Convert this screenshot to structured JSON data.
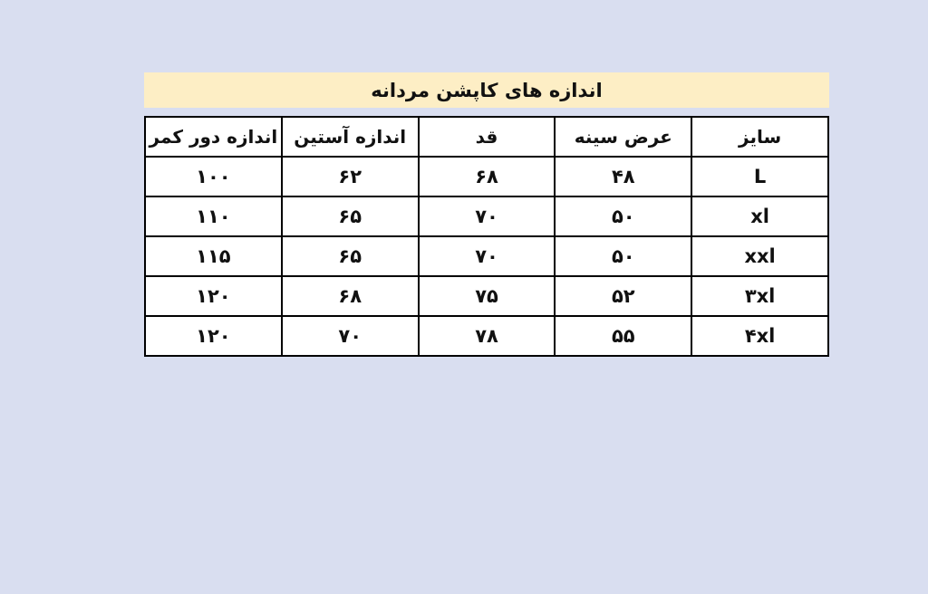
{
  "page": {
    "background_color": "#d9def0"
  },
  "size_chart": {
    "title": "اندازه های کاپشن مردانه",
    "title_bg_color": "#fdeec5",
    "cell_bg_color": "#ffffff",
    "border_color": "#000000",
    "columns": [
      "سایز",
      "عرض سینه",
      "قد",
      "اندازه آستین",
      "اندازه دور کمر"
    ],
    "rows": [
      [
        "L",
        "۴۸",
        "۶۸",
        "۶۲",
        "۱۰۰"
      ],
      [
        "xl",
        "۵۰",
        "۷۰",
        "۶۵",
        "۱۱۰"
      ],
      [
        "xxl",
        "۵۰",
        "۷۰",
        "۶۵",
        "۱۱۵"
      ],
      [
        "۳xl",
        "۵۲",
        "۷۵",
        "۶۸",
        "۱۲۰"
      ],
      [
        "۴xl",
        "۵۵",
        "۷۸",
        "۷۰",
        "۱۲۰"
      ]
    ]
  }
}
